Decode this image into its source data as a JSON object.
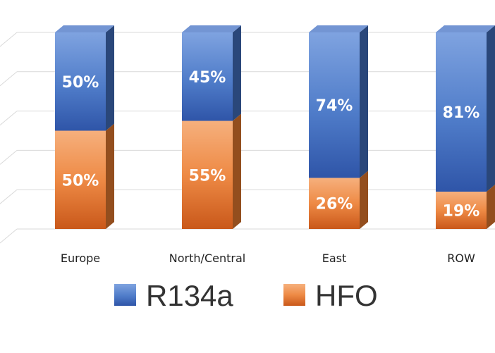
{
  "chart_data": {
    "type": "bar",
    "stacked": true,
    "percent": true,
    "three_d": true,
    "categories": [
      "Europe",
      "North/Central",
      "East",
      "ROW"
    ],
    "series": [
      {
        "name": "HFO",
        "values": [
          50,
          55,
          26,
          19
        ],
        "labels": [
          "50%",
          "55%",
          "26%",
          "19%"
        ],
        "color": "#ED7D31"
      },
      {
        "name": "R134a",
        "values": [
          50,
          45,
          74,
          81
        ],
        "labels": [
          "50%",
          "45%",
          "74%",
          "81%"
        ],
        "color": "#4472C4"
      }
    ],
    "ylim": [
      0,
      100
    ],
    "grid": true,
    "legend": "bottom",
    "legend_order": [
      "R134a",
      "HFO"
    ]
  }
}
